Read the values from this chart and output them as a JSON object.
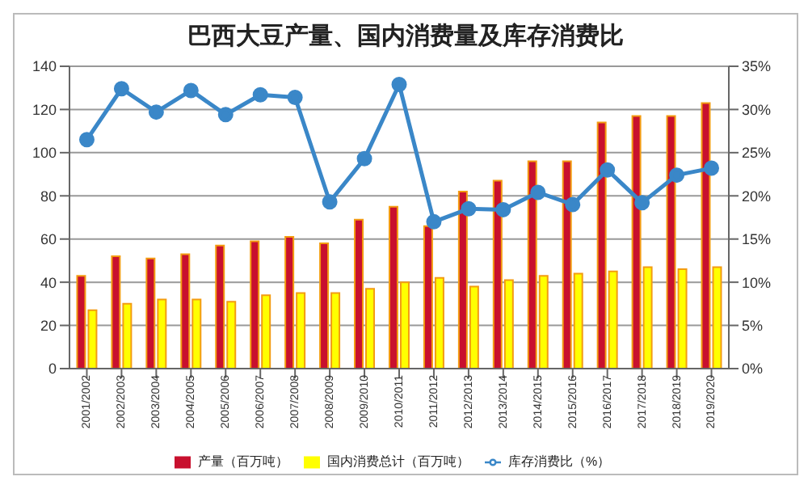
{
  "chart_data": {
    "type": "bar",
    "title": "巴西大豆产量、国内消费量及库存消费比",
    "categories": [
      "2001/2002",
      "2002/2003",
      "2003/2004",
      "2004/2005",
      "2005/2006",
      "2006/2007",
      "2007/2008",
      "2008/2009",
      "2009/2010",
      "2010/2011",
      "2011/2012",
      "2012/2013",
      "2013/2014",
      "2014/2015",
      "2015/2016",
      "2016/2017",
      "2017/2018",
      "2018/2019",
      "2019/2020"
    ],
    "series": [
      {
        "name": "产量（百万吨）",
        "color": "#c8102e",
        "values": [
          43,
          52,
          51,
          53,
          57,
          59,
          61,
          58,
          69,
          75,
          66,
          82,
          87,
          96,
          96,
          114,
          117,
          117,
          123
        ]
      },
      {
        "name": "国内消费总计（百万吨）",
        "color": "#ffff00",
        "values": [
          27,
          30,
          32,
          32,
          31,
          34,
          35,
          35,
          37,
          40,
          42,
          38,
          41,
          43,
          44,
          45,
          47,
          46,
          47
        ]
      },
      {
        "name": "库存消费比（%）",
        "type": "line",
        "axis": "y2",
        "color": "#3a87c8",
        "values": [
          26.5,
          32.4,
          29.7,
          32.2,
          29.4,
          31.7,
          31.4,
          19.3,
          24.3,
          32.9,
          17,
          18.5,
          18.4,
          20.4,
          19,
          23,
          19.2,
          22.4,
          23.2
        ]
      }
    ],
    "ylim": [
      0,
      140
    ],
    "yticks": [
      0,
      20,
      40,
      60,
      80,
      100,
      120,
      140
    ],
    "y2lim": [
      0,
      35
    ],
    "y2ticks": [
      {
        "value": 0,
        "label": "0%"
      },
      {
        "value": 5,
        "label": "5%"
      },
      {
        "value": 10,
        "label": "10%"
      },
      {
        "value": 15,
        "label": "15%"
      },
      {
        "value": 20,
        "label": "20%"
      },
      {
        "value": 25,
        "label": "25%"
      },
      {
        "value": 30,
        "label": "30%"
      },
      {
        "value": 35,
        "label": "35%"
      }
    ],
    "grid": "y",
    "legend": "bottom",
    "marker": "circle"
  }
}
